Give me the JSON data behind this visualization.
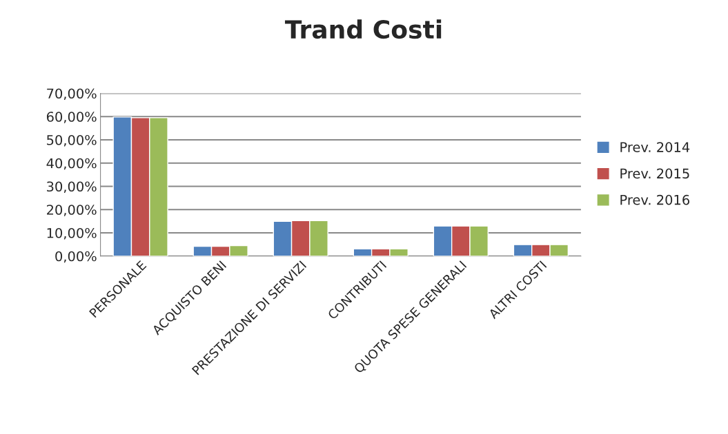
{
  "chart_data": {
    "type": "bar",
    "title": "Trand Costi",
    "categories": [
      "PERSONALE",
      "ACQUISTO BENI",
      "PRESTAZIONE DI SERVIZI",
      "CONTRIBUTI",
      "QUOTA SPESE GENERALI",
      "ALTRI COSTI"
    ],
    "series": [
      {
        "name": "Prev. 2014",
        "color": "#4f81bd",
        "values": [
          59.8,
          4.2,
          14.9,
          3.1,
          12.9,
          4.9
        ]
      },
      {
        "name": "Prev. 2015",
        "color": "#c0504d",
        "values": [
          59.5,
          4.2,
          15.2,
          3.1,
          12.9,
          4.9
        ]
      },
      {
        "name": "Prev. 2016",
        "color": "#9bbb59",
        "values": [
          59.5,
          4.5,
          15.2,
          3.1,
          12.9,
          4.9
        ]
      }
    ],
    "ylim": [
      0,
      70
    ],
    "yticks": [
      {
        "value": 0,
        "label": "0,00%"
      },
      {
        "value": 10,
        "label": "10,00%"
      },
      {
        "value": 20,
        "label": "20,00%"
      },
      {
        "value": 30,
        "label": "30,00%"
      },
      {
        "value": 40,
        "label": "40,00%"
      },
      {
        "value": 50,
        "label": "50,00%"
      },
      {
        "value": 60,
        "label": "60,00%"
      },
      {
        "value": 70,
        "label": "70,00%"
      }
    ],
    "grid": "y",
    "legend": "right"
  }
}
